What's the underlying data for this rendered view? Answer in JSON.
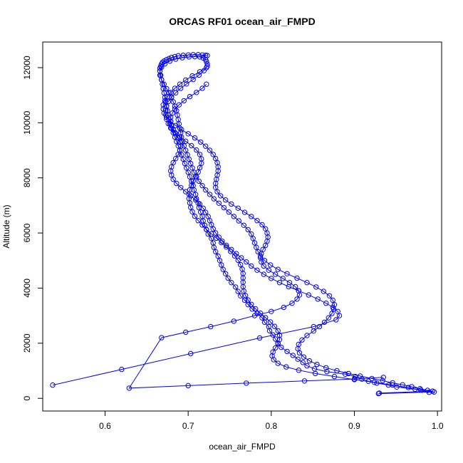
{
  "chart_data": {
    "type": "line",
    "title": "ORCAS RF01 ocean_air_FMPD",
    "xlabel": "ocean_air_FMPD",
    "ylabel": "Altitude (m)",
    "xlim": [
      0.525,
      1.005
    ],
    "ylim": [
      -460,
      12930
    ],
    "xticks": [
      "0.6",
      "0.7",
      "0.8",
      "0.9",
      "1.0"
    ],
    "yticks": [
      "0",
      "2000",
      "4000",
      "6000",
      "8000",
      "10000",
      "12000"
    ],
    "line_color": "#0000ff",
    "marker": "open-circle",
    "series": [
      {
        "x": [
          0.93,
          0.994,
          0.973,
          0.951,
          0.941,
          0.927,
          0.917,
          0.909,
          0.901,
          0.889,
          0.867,
          0.852,
          0.843,
          0.838,
          0.832,
          0.826,
          0.819,
          0.812,
          0.808,
          0.805,
          0.802,
          0.798,
          0.797,
          0.792,
          0.789,
          0.783,
          0.777,
          0.772,
          0.768,
          0.763,
          0.76,
          0.757,
          0.752,
          0.748,
          0.745,
          0.742,
          0.74,
          0.738,
          0.736,
          0.733,
          0.731,
          0.73,
          0.728,
          0.724,
          0.722,
          0.72,
          0.718,
          0.717,
          0.715,
          0.713,
          0.712,
          0.71,
          0.709,
          0.707,
          0.706,
          0.704,
          0.702,
          0.7,
          0.698,
          0.696,
          0.694,
          0.692,
          0.69,
          0.688,
          0.686,
          0.684,
          0.682,
          0.68,
          0.678,
          0.677,
          0.676,
          0.675,
          0.674,
          0.673,
          0.672,
          0.671,
          0.67,
          0.669,
          0.668,
          0.667,
          0.666,
          0.666,
          0.667,
          0.668,
          0.669,
          0.671,
          0.674,
          0.677,
          0.68,
          0.684,
          0.688,
          0.694,
          0.7,
          0.706,
          0.712,
          0.717,
          0.721,
          0.723
        ],
        "y": [
          190,
          260,
          330,
          410,
          480,
          550,
          620,
          700,
          790,
          880,
          970,
          1070,
          1180,
          1300,
          1420,
          1560,
          1700,
          1850,
          2000,
          2150,
          2300,
          2450,
          2600,
          2760,
          2920,
          3080,
          3240,
          3400,
          3560,
          3720,
          3880,
          4040,
          4200,
          4360,
          4520,
          4680,
          4840,
          5000,
          5160,
          5320,
          5480,
          5640,
          5800,
          5960,
          6120,
          6280,
          6440,
          6600,
          6760,
          6920,
          7080,
          7240,
          7400,
          7560,
          7720,
          7880,
          8040,
          8200,
          8360,
          8520,
          8680,
          8840,
          9000,
          9160,
          9320,
          9480,
          9640,
          9800,
          9960,
          10120,
          10280,
          10440,
          10600,
          10760,
          10920,
          11080,
          11240,
          11400,
          11560,
          11720,
          11880,
          11980,
          12060,
          12130,
          12190,
          12240,
          12290,
          12330,
          12370,
          12400,
          12430,
          12450,
          12460,
          12470,
          12470,
          12460,
          12450,
          12440
        ]
      },
      {
        "x": [
          0.929,
          0.996,
          0.988,
          0.979,
          0.969,
          0.958,
          0.946,
          0.934,
          0.921,
          0.907,
          0.893,
          0.879,
          0.866,
          0.855,
          0.846,
          0.839,
          0.834,
          0.832,
          0.833,
          0.837,
          0.843,
          0.851,
          0.858,
          0.864,
          0.869,
          0.873,
          0.875,
          0.876,
          0.874,
          0.87,
          0.863,
          0.854,
          0.843,
          0.831,
          0.819,
          0.808,
          0.799,
          0.792,
          0.787,
          0.784,
          0.782,
          0.78,
          0.778,
          0.776,
          0.772,
          0.767,
          0.761,
          0.755,
          0.749,
          0.743,
          0.737,
          0.731,
          0.726,
          0.721,
          0.717,
          0.713,
          0.71,
          0.707,
          0.705,
          0.703,
          0.701,
          0.699,
          0.697,
          0.695,
          0.693,
          0.692,
          0.691,
          0.69,
          0.689,
          0.688,
          0.687,
          0.686,
          0.684,
          0.682,
          0.68,
          0.677,
          0.674,
          0.671,
          0.668,
          0.666,
          0.666,
          0.668,
          0.672,
          0.678,
          0.685,
          0.693,
          0.701,
          0.708,
          0.714,
          0.718,
          0.721,
          0.722,
          0.723
        ],
        "y": [
          170,
          230,
          290,
          350,
          420,
          490,
          560,
          640,
          720,
          810,
          900,
          1000,
          1110,
          1230,
          1360,
          1500,
          1650,
          1800,
          1960,
          2120,
          2280,
          2440,
          2600,
          2760,
          2920,
          3080,
          3240,
          3400,
          3560,
          3720,
          3880,
          4040,
          4200,
          4360,
          4520,
          4680,
          4840,
          5000,
          5160,
          5320,
          5480,
          5640,
          5800,
          5960,
          6120,
          6280,
          6440,
          6600,
          6760,
          6920,
          7080,
          7240,
          7400,
          7560,
          7720,
          7880,
          8040,
          8200,
          8360,
          8520,
          8680,
          8840,
          9000,
          9160,
          9320,
          9480,
          9640,
          9800,
          9960,
          10120,
          10280,
          10440,
          10600,
          10760,
          10920,
          11080,
          11240,
          11400,
          11560,
          11720,
          11880,
          12020,
          12140,
          12240,
          12310,
          12360,
          12390,
          12400,
          12390,
          12350,
          12290,
          12220,
          12130
        ]
      },
      {
        "x": [
          0.722,
          0.714,
          0.705,
          0.697,
          0.69,
          0.684,
          0.679,
          0.675,
          0.672,
          0.67,
          0.67,
          0.671,
          0.674,
          0.679,
          0.685,
          0.692,
          0.7,
          0.708,
          0.715,
          0.721,
          0.726,
          0.73,
          0.733,
          0.735,
          0.736,
          0.736,
          0.735,
          0.734,
          0.733,
          0.733,
          0.735,
          0.739,
          0.745,
          0.752,
          0.76,
          0.768,
          0.776,
          0.783,
          0.789,
          0.793,
          0.795,
          0.796,
          0.795,
          0.793,
          0.79,
          0.788,
          0.787,
          0.788,
          0.791,
          0.797,
          0.805,
          0.814,
          0.822,
          0.829,
          0.833,
          0.834,
          0.831,
          0.825,
          0.815,
          0.8,
          0.78,
          0.755,
          0.727,
          0.697,
          0.668,
          0.629,
          0.7,
          0.77,
          0.84,
          0.9,
          0.935
        ],
        "y": [
          12000,
          11850,
          11700,
          11550,
          11400,
          11250,
          11100,
          10950,
          10800,
          10650,
          10500,
          10350,
          10200,
          10050,
          9900,
          9750,
          9600,
          9450,
          9300,
          9150,
          9000,
          8850,
          8700,
          8550,
          8400,
          8250,
          8100,
          7950,
          7800,
          7650,
          7500,
          7350,
          7200,
          7050,
          6900,
          6750,
          6600,
          6450,
          6300,
          6150,
          6000,
          5850,
          5700,
          5550,
          5400,
          5250,
          5100,
          4950,
          4800,
          4650,
          4500,
          4350,
          4200,
          4050,
          3900,
          3750,
          3600,
          3450,
          3300,
          3150,
          3000,
          2800,
          2600,
          2400,
          2200,
          370,
          460,
          550,
          630,
          700,
          760
        ]
      },
      {
        "x": [
          0.99,
          0.98,
          0.965,
          0.946,
          0.924,
          0.9,
          0.876,
          0.853,
          0.833,
          0.818,
          0.808,
          0.803,
          0.801,
          0.802,
          0.805,
          0.808,
          0.81,
          0.81,
          0.808,
          0.804,
          0.799,
          0.793,
          0.787,
          0.781,
          0.776,
          0.772,
          0.769,
          0.767,
          0.766,
          0.766,
          0.766,
          0.766,
          0.765,
          0.763,
          0.76,
          0.756,
          0.751,
          0.746,
          0.74,
          0.734,
          0.728,
          0.722,
          0.717,
          0.712,
          0.708,
          0.705,
          0.703,
          0.702,
          0.701,
          0.701,
          0.702,
          0.704,
          0.706,
          0.709,
          0.712,
          0.714,
          0.716,
          0.716,
          0.714,
          0.71,
          0.704,
          0.697,
          0.69,
          0.684,
          0.679,
          0.676,
          0.674,
          0.673,
          0.673,
          0.674,
          0.676,
          0.68,
          0.685,
          0.691,
          0.698,
          0.706,
          0.713,
          0.719,
          0.723
        ],
        "y": [
          220,
          300,
          390,
          480,
          580,
          680,
          790,
          900,
          1020,
          1140,
          1270,
          1400,
          1540,
          1680,
          1830,
          1980,
          2130,
          2290,
          2450,
          2610,
          2770,
          2930,
          3090,
          3250,
          3410,
          3570,
          3730,
          3890,
          4050,
          4210,
          4370,
          4530,
          4690,
          4850,
          5010,
          5170,
          5330,
          5490,
          5650,
          5810,
          5970,
          6130,
          6290,
          6450,
          6610,
          6770,
          6930,
          7090,
          7250,
          7410,
          7570,
          7730,
          7890,
          8050,
          8210,
          8370,
          8530,
          8690,
          8850,
          9010,
          9170,
          9330,
          9490,
          9650,
          9810,
          9970,
          10130,
          10290,
          10450,
          10610,
          10770,
          10930,
          11090,
          11250,
          11410,
          11570,
          11730,
          11890,
          12050
        ]
      },
      {
        "x": [
          0.537,
          0.62,
          0.703,
          0.786,
          0.851,
          0.878,
          0.882,
          0.88,
          0.874,
          0.866,
          0.856,
          0.845,
          0.833,
          0.821,
          0.81,
          0.8,
          0.791,
          0.783,
          0.776,
          0.77,
          0.764,
          0.758,
          0.752,
          0.746,
          0.741,
          0.737,
          0.733,
          0.73,
          0.728,
          0.726,
          0.724,
          0.721,
          0.718,
          0.714,
          0.709,
          0.703,
          0.697,
          0.691,
          0.686,
          0.682,
          0.68,
          0.679,
          0.68,
          0.682,
          0.685,
          0.688,
          0.69,
          0.691,
          0.69,
          0.688,
          0.685,
          0.682,
          0.68,
          0.679,
          0.679,
          0.681,
          0.684,
          0.689,
          0.695,
          0.702,
          0.71,
          0.717,
          0.722
        ],
        "y": [
          480,
          1050,
          1620,
          2190,
          2600,
          2850,
          3000,
          3150,
          3300,
          3450,
          3600,
          3750,
          3900,
          4050,
          4200,
          4350,
          4500,
          4650,
          4800,
          4950,
          5100,
          5250,
          5400,
          5550,
          5700,
          5850,
          6000,
          6150,
          6300,
          6450,
          6600,
          6750,
          6900,
          7050,
          7200,
          7350,
          7500,
          7650,
          7800,
          7950,
          8100,
          8250,
          8400,
          8550,
          8700,
          8850,
          9000,
          9150,
          9300,
          9450,
          9600,
          9750,
          9900,
          10050,
          10200,
          10350,
          10500,
          10650,
          10800,
          10950,
          11100,
          11250,
          11400
        ]
      }
    ]
  }
}
